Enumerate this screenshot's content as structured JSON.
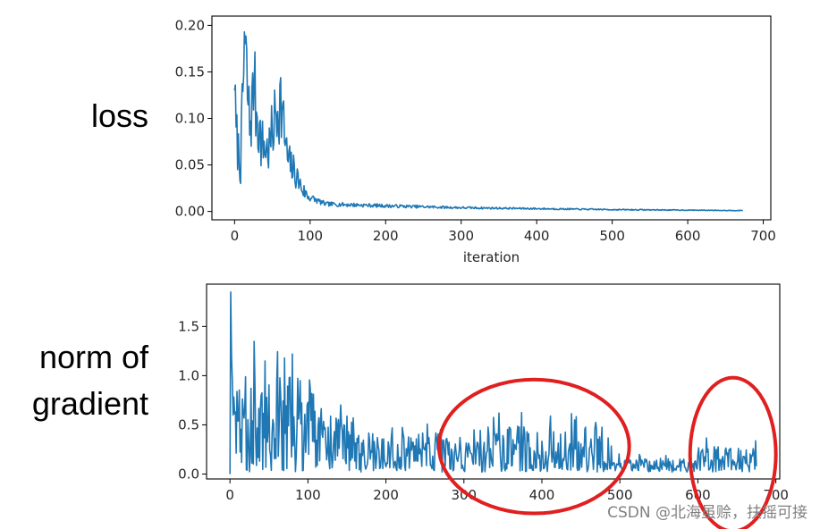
{
  "labels": {
    "loss": "loss",
    "gradient_line1": "norm of",
    "gradient_line2": "gradient"
  },
  "watermark": "CSDN @北海虽赊，扶摇可接",
  "colors": {
    "line": "#1f77b4",
    "annotation": "#e02020",
    "axes": "#000000"
  },
  "chart_data": [
    {
      "type": "line",
      "title": "",
      "xlabel": "iteration",
      "ylabel": "",
      "xlim": [
        -30,
        710
      ],
      "ylim": [
        -0.009,
        0.21
      ],
      "xticks": [
        0,
        100,
        200,
        300,
        400,
        500,
        600,
        700
      ],
      "yticks": [
        0.0,
        0.05,
        0.1,
        0.15,
        0.2
      ],
      "ytick_labels": [
        "0.00",
        "0.05",
        "0.10",
        "0.15",
        "0.20"
      ],
      "x_range": [
        0,
        673
      ],
      "series": [
        {
          "name": "",
          "key_points": [
            [
              0,
              0.13
            ],
            [
              2,
              0.09
            ],
            [
              8,
              0.05
            ],
            [
              13,
              0.193
            ],
            [
              20,
              0.1
            ],
            [
              26,
              0.14
            ],
            [
              35,
              0.08
            ],
            [
              45,
              0.07
            ],
            [
              60,
              0.136
            ],
            [
              70,
              0.06
            ],
            [
              80,
              0.045
            ],
            [
              90,
              0.025
            ],
            [
              100,
              0.015
            ],
            [
              120,
              0.008
            ],
            [
              200,
              0.006
            ],
            [
              300,
              0.004
            ],
            [
              400,
              0.003
            ],
            [
              500,
              0.002
            ],
            [
              673,
              0.001
            ]
          ]
        }
      ]
    },
    {
      "type": "line",
      "title": "",
      "xlabel": "",
      "ylabel": "",
      "xlim": [
        -30,
        705
      ],
      "ylim": [
        -0.05,
        1.93
      ],
      "xticks": [
        0,
        100,
        200,
        300,
        400,
        500,
        600,
        700
      ],
      "yticks": [
        0.0,
        0.5,
        1.0,
        1.5
      ],
      "ytick_labels": [
        "0.0",
        "0.5",
        "1.0",
        "1.5"
      ],
      "x_range": [
        0,
        675
      ],
      "series": [
        {
          "name": "",
          "key_points": [
            [
              0,
              0.0
            ],
            [
              1,
              1.85
            ],
            [
              3,
              0.95
            ],
            [
              10,
              0.3
            ],
            [
              45,
              1.15
            ],
            [
              70,
              1.2
            ],
            [
              80,
              1.22
            ],
            [
              100,
              0.3
            ],
            [
              150,
              0.15
            ],
            [
              200,
              0.25
            ],
            [
              300,
              0.12
            ],
            [
              345,
              0.62
            ],
            [
              400,
              0.25
            ],
            [
              470,
              0.45
            ],
            [
              500,
              0.1
            ],
            [
              580,
              0.08
            ],
            [
              640,
              0.25
            ],
            [
              675,
              0.08
            ]
          ]
        }
      ],
      "annotations": [
        {
          "shape": "ellipse",
          "color": "#e02020",
          "x_center": 390,
          "y_center": 0.28,
          "x_halfwidth": 122,
          "y_halfwidth": 0.68
        },
        {
          "shape": "ellipse",
          "color": "#e02020",
          "x_center": 645,
          "y_center": 0.2,
          "x_halfwidth": 55,
          "y_halfwidth": 0.78
        }
      ]
    }
  ]
}
